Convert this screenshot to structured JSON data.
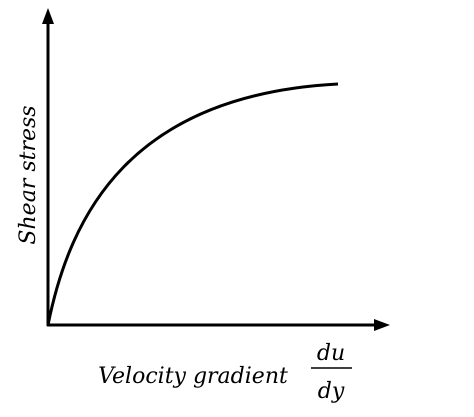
{
  "y_axis_label": "Shear stress",
  "x_axis_label": "Velocity gradient",
  "x_axis_fraction": {
    "numerator": "du",
    "denominator": "dy"
  }
}
